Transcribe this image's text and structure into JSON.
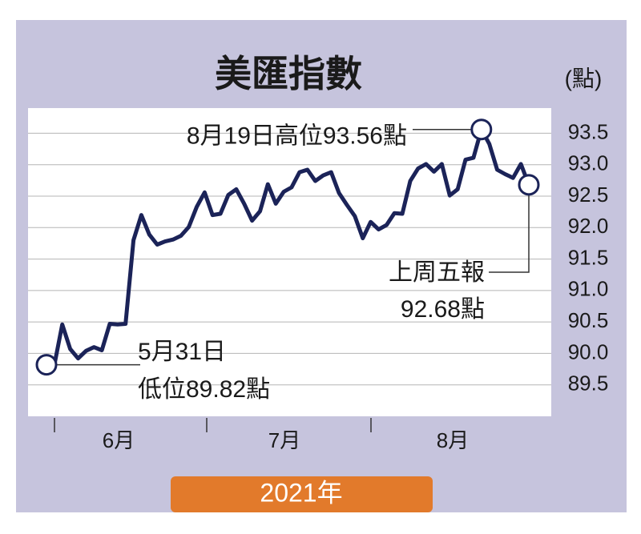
{
  "chart_data": {
    "type": "line",
    "title": "美匯指數",
    "unit_label": "(點)",
    "ylim": [
      89.0,
      93.9
    ],
    "yticks": [
      {
        "value": 89.5,
        "label": "89.5"
      },
      {
        "value": 90,
        "label": "90.0"
      },
      {
        "value": 90.5,
        "label": "90.5"
      },
      {
        "value": 91,
        "label": "91.0"
      },
      {
        "value": 91.5,
        "label": "91.5"
      },
      {
        "value": 92,
        "label": "92.0"
      },
      {
        "value": 92.5,
        "label": "92.5"
      },
      {
        "value": 93,
        "label": "93.0"
      },
      {
        "value": 93.5,
        "label": "93.5"
      }
    ],
    "grid": true,
    "month_labels": [
      "6月",
      "7月",
      "8月"
    ],
    "year_label": "2021年",
    "color": "#1b2358",
    "values": [
      89.82,
      89.82,
      90.46,
      90.07,
      89.92,
      90.04,
      90.1,
      90.05,
      90.47,
      90.46,
      90.47,
      91.8,
      92.2,
      91.89,
      91.73,
      91.78,
      91.81,
      91.87,
      92.01,
      92.33,
      92.56,
      92.2,
      92.22,
      92.52,
      92.61,
      92.38,
      92.11,
      92.26,
      92.69,
      92.38,
      92.57,
      92.64,
      92.88,
      92.92,
      92.74,
      92.83,
      92.88,
      92.55,
      92.36,
      92.18,
      91.83,
      92.09,
      91.97,
      92.04,
      92.23,
      92.22,
      92.74,
      92.94,
      93.01,
      92.89,
      93.01,
      92.51,
      92.61,
      93.08,
      93.11,
      93.56,
      93.33,
      92.92,
      92.85,
      92.79,
      93.01,
      92.68
    ],
    "annotations": [
      {
        "text": "8月19日高位93.56點",
        "index": 55
      },
      {
        "text": [
          "5月31日",
          "低位89.82點"
        ],
        "index": 0
      },
      {
        "text": [
          "上周五報",
          "92.68點"
        ],
        "index": 61
      }
    ]
  }
}
